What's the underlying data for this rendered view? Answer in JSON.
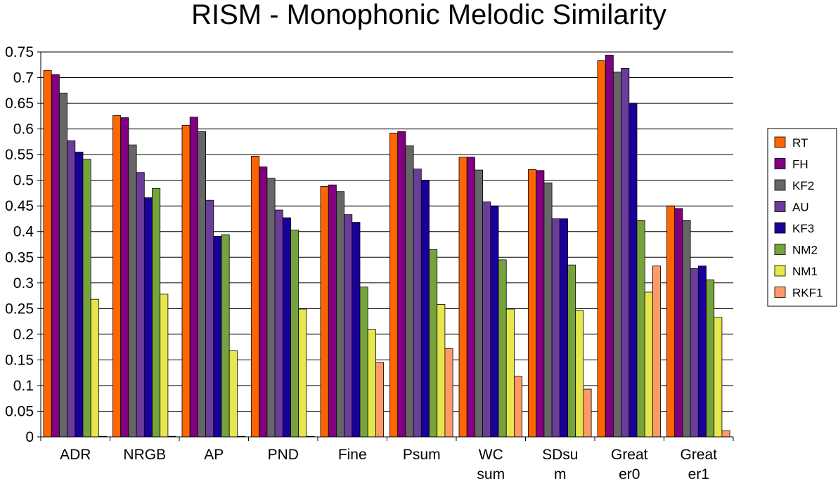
{
  "chart_data": {
    "type": "bar",
    "title": "RISM - Monophonic Melodic Similarity",
    "xlabel": "",
    "ylabel": "",
    "ylim": [
      0,
      0.75
    ],
    "y_ticks": [
      "0",
      "0.05",
      "0.1",
      "0.15",
      "0.2",
      "0.25",
      "0.3",
      "0.35",
      "0.4",
      "0.45",
      "0.5",
      "0.55",
      "0.6",
      "0.65",
      "0.7",
      "0.75"
    ],
    "grid": "horizontal",
    "legend_position": "right",
    "categories": [
      [
        "ADR"
      ],
      [
        "NRGB"
      ],
      [
        "AP"
      ],
      [
        "PND"
      ],
      [
        "Fine"
      ],
      [
        "Psum"
      ],
      [
        "WC",
        "sum"
      ],
      [
        "SDsu",
        "m"
      ],
      [
        "Great",
        "er0"
      ],
      [
        "Great",
        "er1"
      ]
    ],
    "series": [
      {
        "name": "RT",
        "color": "#ff6600",
        "values": [
          0.714,
          0.626,
          0.607,
          0.547,
          0.488,
          0.592,
          0.545,
          0.521,
          0.733,
          0.45
        ]
      },
      {
        "name": "FH",
        "color": "#800080",
        "values": [
          0.706,
          0.622,
          0.623,
          0.526,
          0.491,
          0.595,
          0.545,
          0.519,
          0.744,
          0.445
        ]
      },
      {
        "name": "KF2",
        "color": "#666666",
        "values": [
          0.67,
          0.569,
          0.595,
          0.504,
          0.478,
          0.567,
          0.52,
          0.495,
          0.711,
          0.422
        ]
      },
      {
        "name": "AU",
        "color": "#6a3d9a",
        "values": [
          0.577,
          0.515,
          0.461,
          0.442,
          0.433,
          0.522,
          0.458,
          0.425,
          0.718,
          0.328
        ]
      },
      {
        "name": "KF3",
        "color": "#1a0099",
        "values": [
          0.555,
          0.466,
          0.391,
          0.427,
          0.418,
          0.5,
          0.45,
          0.425,
          0.65,
          0.333
        ]
      },
      {
        "name": "NM2",
        "color": "#77a33d",
        "values": [
          0.541,
          0.484,
          0.394,
          0.403,
          0.292,
          0.365,
          0.345,
          0.335,
          0.422,
          0.306
        ]
      },
      {
        "name": "NM1",
        "color": "#e6e64d",
        "values": [
          0.268,
          0.278,
          0.168,
          0.249,
          0.209,
          0.258,
          0.249,
          0.246,
          0.282,
          0.233
        ]
      },
      {
        "name": "RKF1",
        "color": "#ff9966",
        "values": [
          0.001,
          0.001,
          0.001,
          0.001,
          0.145,
          0.172,
          0.118,
          0.093,
          0.333,
          0.012
        ]
      }
    ]
  }
}
